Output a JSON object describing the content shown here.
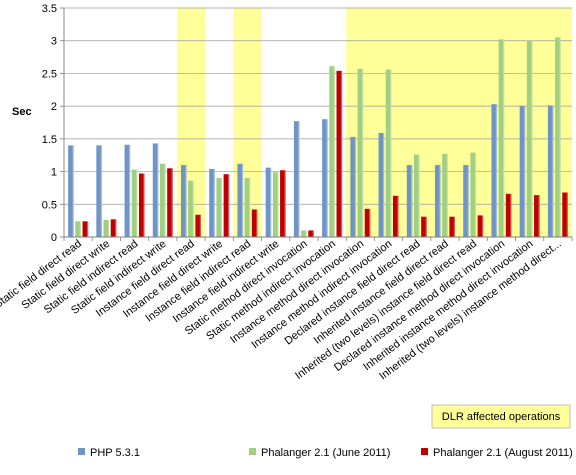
{
  "chart_data": {
    "type": "bar",
    "ylabel": "Sec",
    "ylim": [
      0,
      3.5
    ],
    "yticks": [
      "0",
      "0.5",
      "1",
      "1.5",
      "2",
      "2.5",
      "3",
      "3.5"
    ],
    "grid": true,
    "legend_position": "bottom",
    "categories": [
      "Static field direct read",
      "Static field direct write",
      "Static field indirect read",
      "Static field indirect write",
      "Instance field direct read",
      "Instance field direct write",
      "Instance field indirect read",
      "Instance field indirect write",
      "Static method direct invocation",
      "Static method indirect invocation",
      "Instance method direct invocation",
      "Instance method indirect invocation",
      "Declared instance field direct read",
      "Inherited instance field direct read",
      "Inherited (two levels) instance field direct read",
      "Declared instance method direct invocation",
      "Inherited instance method direct invocation",
      "Inherited (two levels) instance method direct..."
    ],
    "series": [
      {
        "name": "PHP 5.3.1",
        "color": "#6f95c6",
        "values": [
          1.4,
          1.4,
          1.41,
          1.43,
          1.1,
          1.04,
          1.12,
          1.06,
          1.77,
          1.8,
          1.53,
          1.59,
          1.1,
          1.1,
          1.1,
          2.03,
          2.0,
          2.01
        ]
      },
      {
        "name": "Phalanger 2.1 (June 2011)",
        "color": "#9fcf7f",
        "values": [
          0.24,
          0.26,
          1.03,
          1.12,
          0.86,
          0.9,
          0.9,
          0.99,
          0.1,
          2.61,
          2.57,
          2.56,
          1.26,
          1.27,
          1.29,
          3.02,
          3.0,
          3.05
        ]
      },
      {
        "name": "Phalanger 2.1 (August 2011)",
        "color": "#c00000",
        "values": [
          0.24,
          0.27,
          0.97,
          1.05,
          0.34,
          0.96,
          0.42,
          1.02,
          0.1,
          2.54,
          0.43,
          0.63,
          0.31,
          0.31,
          0.33,
          0.66,
          0.64,
          0.68
        ]
      }
    ],
    "highlight": {
      "label": "DLR affected operations",
      "color": "#ffff99",
      "categories": [
        4,
        6,
        10,
        11,
        12,
        13,
        14,
        15,
        16,
        17
      ]
    }
  }
}
